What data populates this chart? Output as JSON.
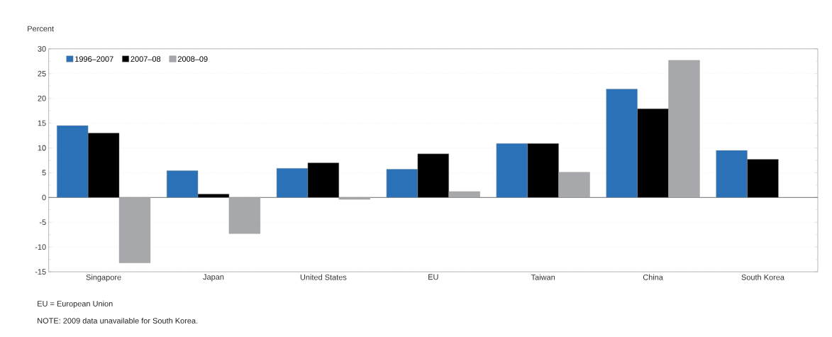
{
  "chart_data": {
    "type": "bar",
    "ylabel": "Percent",
    "categories": [
      "Singapore",
      "Japan",
      "United States",
      "EU",
      "Taiwan",
      "China",
      "South Korea"
    ],
    "series": [
      {
        "name": "1996–2007",
        "color": "#2a71b8",
        "values": [
          14.5,
          5.4,
          5.9,
          5.7,
          10.9,
          21.9,
          9.5
        ]
      },
      {
        "name": "2007–08",
        "color": "#000000",
        "values": [
          13.0,
          0.7,
          7.0,
          8.8,
          10.9,
          17.9,
          7.7
        ]
      },
      {
        "name": "2008–09",
        "color": "#a7a8ab",
        "values": [
          -13.2,
          -7.3,
          -0.4,
          1.2,
          5.1,
          27.7,
          null
        ]
      }
    ],
    "ylim": [
      -15,
      30
    ],
    "yticks": [
      -15,
      -10,
      -5,
      0,
      5,
      10,
      15,
      20,
      25,
      30
    ],
    "grid": "y",
    "legend": "top left",
    "annotations": [
      "EU = European Union",
      "NOTE: 2009 data unavailable for South Korea."
    ]
  }
}
